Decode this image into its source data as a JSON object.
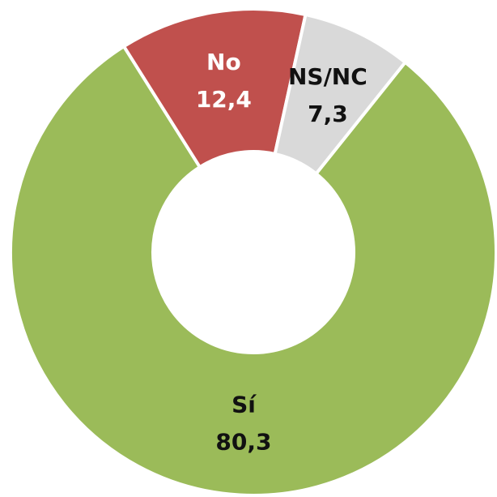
{
  "chart_data": {
    "type": "donut",
    "categories": [
      "Sí",
      "No",
      "NS/NC"
    ],
    "values": [
      80.3,
      12.4,
      7.3
    ],
    "value_labels": [
      "80,3",
      "12,4",
      "7,3"
    ],
    "colors": [
      "#9bbb59",
      "#c0504d",
      "#d9d9d9"
    ],
    "label_colors": [
      "#111111",
      "#ffffff",
      "#111111"
    ]
  }
}
